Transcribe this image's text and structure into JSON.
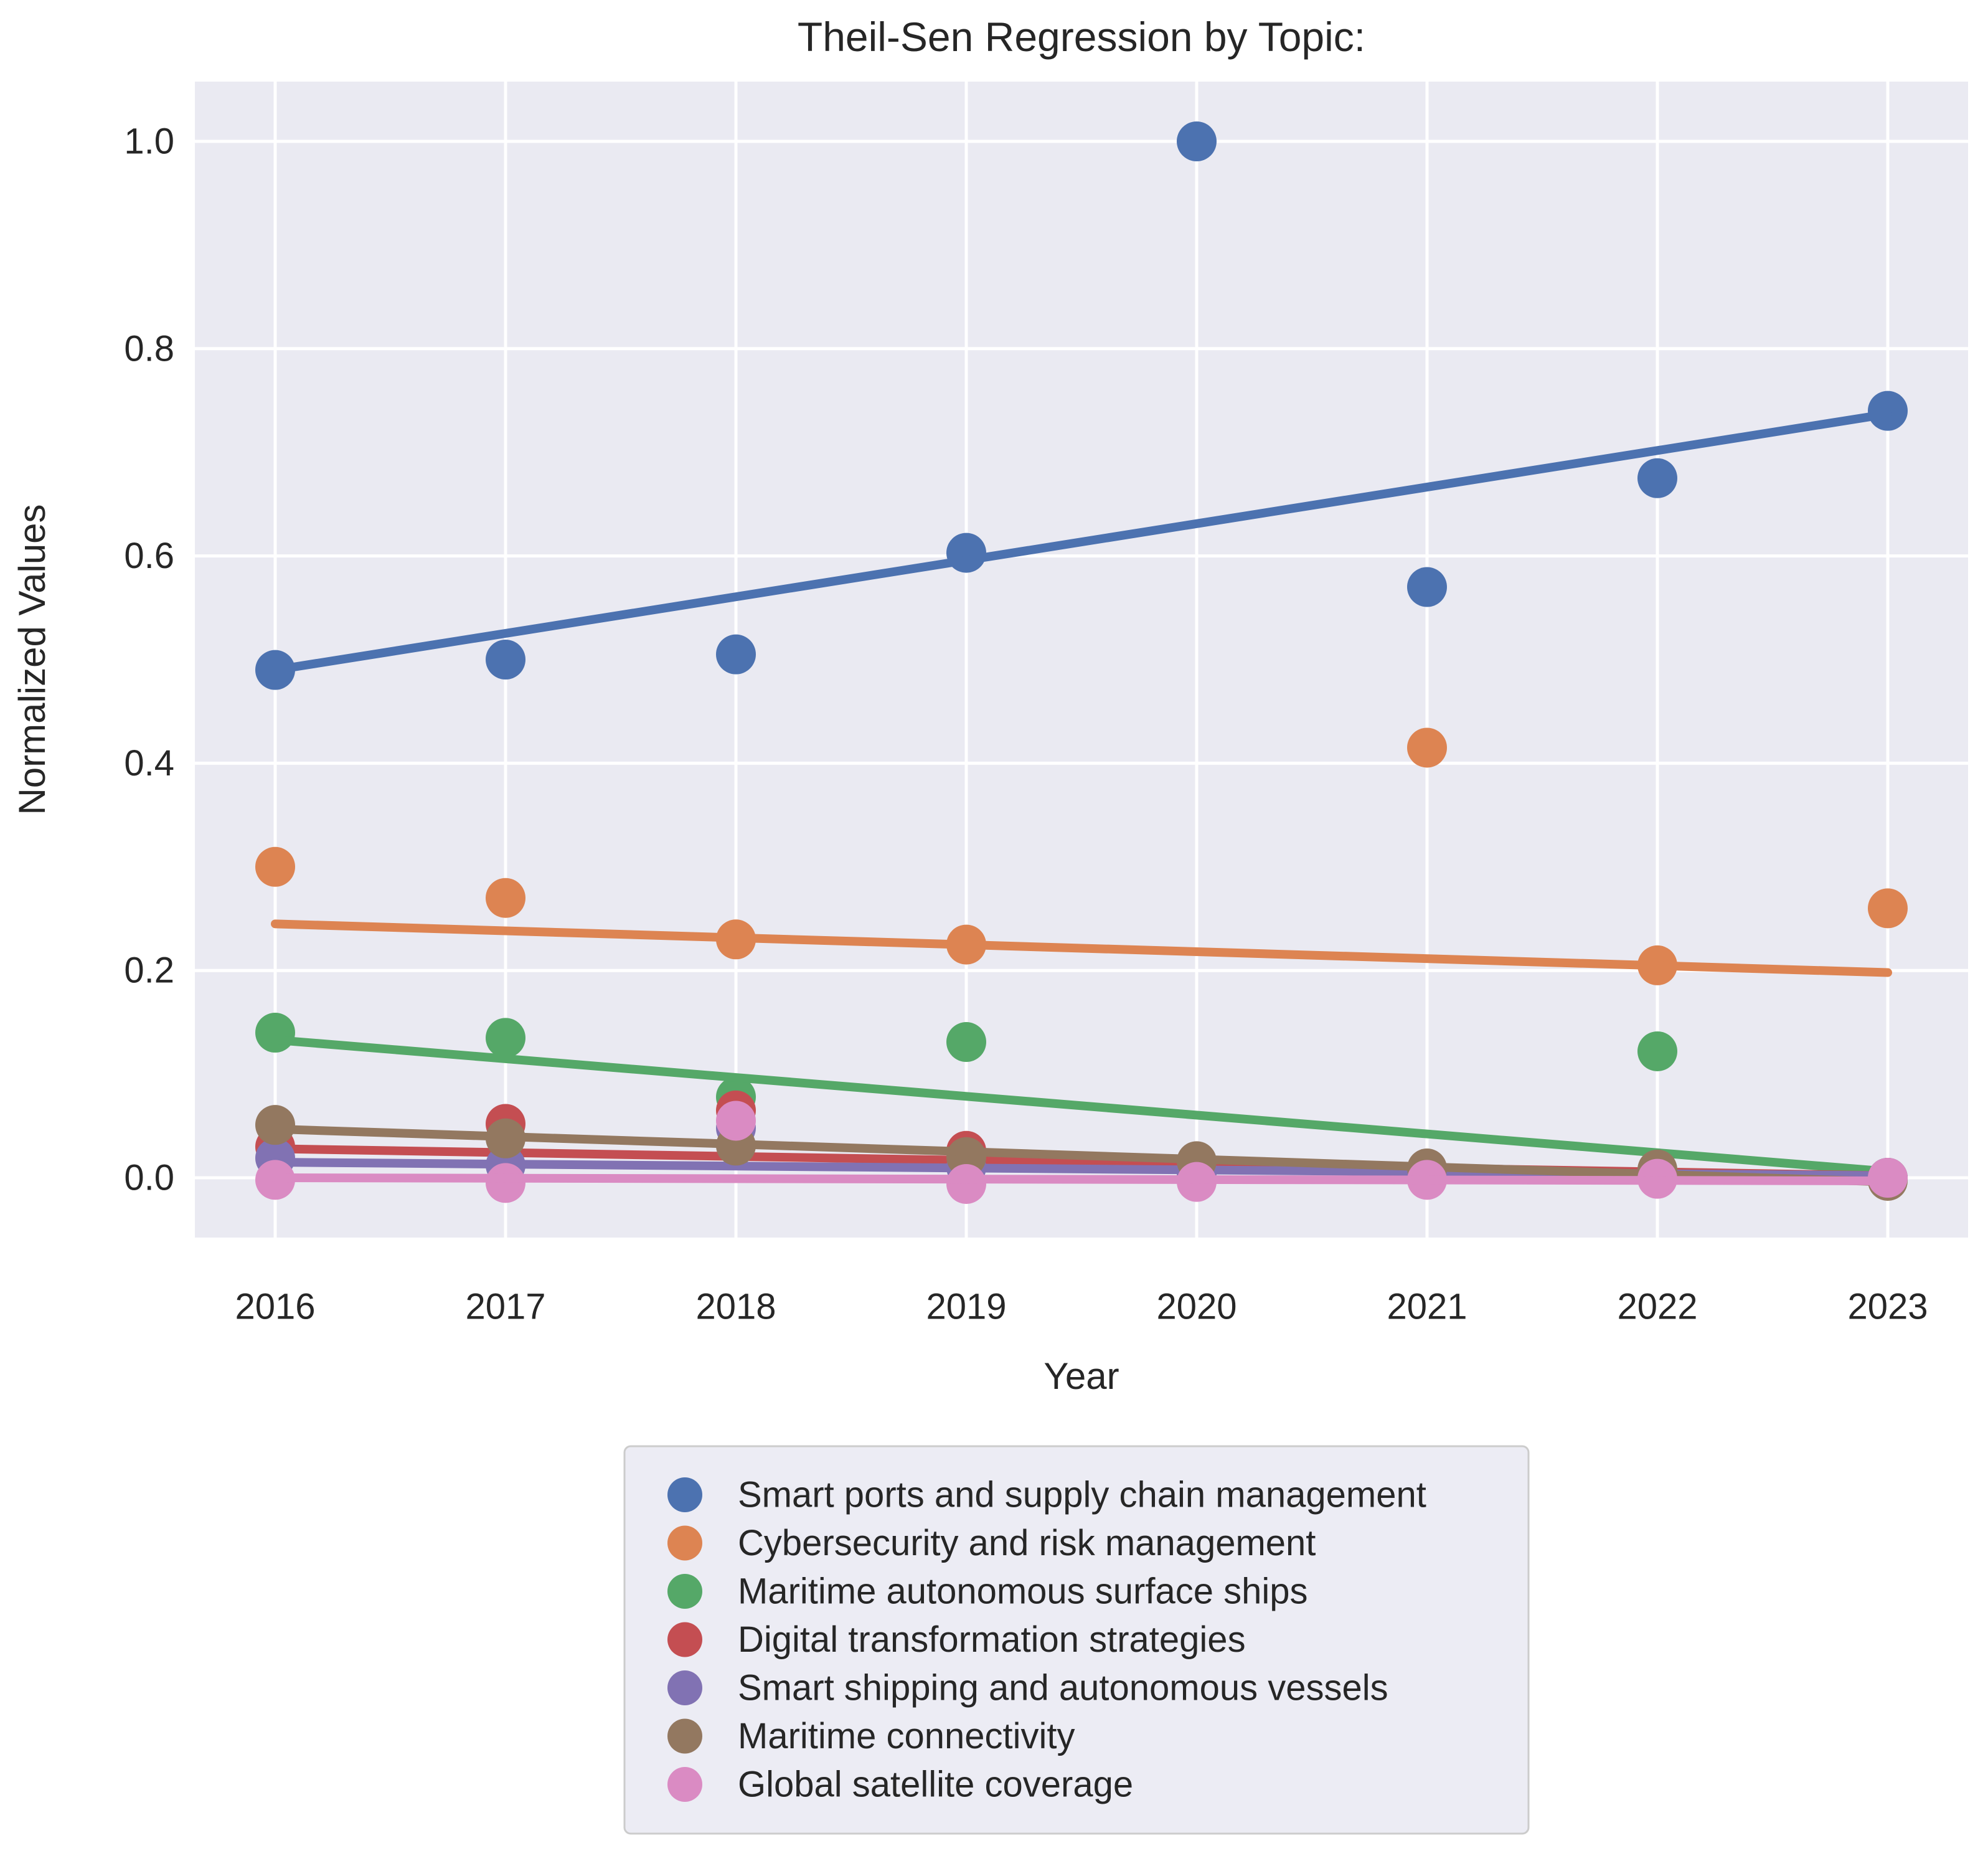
{
  "title": "Theil-Sen Regression by Topic:",
  "axes": {
    "xlabel": "Year",
    "ylabel": "Normalized Values",
    "x_tick_labels": [
      "2016",
      "2017",
      "2018",
      "2019",
      "2020",
      "2021",
      "2022",
      "2023"
    ],
    "y_tick_labels": [
      "0.0",
      "0.2",
      "0.4",
      "0.6",
      "0.8",
      "1.0"
    ],
    "y_tick_values": [
      0.0,
      0.2,
      0.4,
      0.6,
      0.8,
      1.0
    ]
  },
  "style_colors": {
    "plot_background": "#EAEAF2",
    "gridline": "#FFFFFF",
    "legend_background": "#ECECF4",
    "legend_border": "#CCCCCC",
    "text": "#262626"
  },
  "chart_data": {
    "type": "scatter",
    "title": "Theil-Sen Regression by Topic:",
    "xlabel": "Year",
    "ylabel": "Normalized Values",
    "x": [
      2016,
      2017,
      2018,
      2019,
      2020,
      2021,
      2022,
      2023
    ],
    "xlim": [
      2015.65,
      2023.35
    ],
    "ylim": [
      -0.058,
      1.058
    ],
    "grid": true,
    "legend_position": "below-plot",
    "marker": "circle",
    "regression": "theil-sen trend line per series",
    "series": [
      {
        "name": "Smart ports and supply chain management",
        "slug": "smart-ports-and-supply-chain-management",
        "color": "#4C72B0",
        "values": [
          0.49,
          0.5,
          0.505,
          0.603,
          1.0,
          0.57,
          0.675,
          0.74
        ],
        "trend": {
          "x_start": 2016,
          "y_start": 0.49,
          "x_end": 2023,
          "y_end": 0.737
        }
      },
      {
        "name": "Cybersecurity and risk management",
        "slug": "cybersecurity-and-risk-management",
        "color": "#DD8452",
        "values": [
          0.3,
          0.27,
          0.23,
          0.225,
          0.0,
          0.415,
          0.205,
          0.26
        ],
        "trend": {
          "x_start": 2016,
          "y_start": 0.245,
          "x_end": 2023,
          "y_end": 0.198
        }
      },
      {
        "name": "Maritime autonomous surface ships",
        "slug": "maritime-autonomous-surface-ships",
        "color": "#55A868",
        "values": [
          0.14,
          0.135,
          0.078,
          0.131,
          0.0,
          0.0,
          0.122,
          0.0
        ],
        "trend": {
          "x_start": 2016,
          "y_start": 0.133,
          "x_end": 2023,
          "y_end": 0.006
        }
      },
      {
        "name": "Digital transformation strategies",
        "slug": "digital-transformation-strategies",
        "color": "#C44E52",
        "values": [
          0.03,
          0.052,
          0.065,
          0.026,
          0.015,
          0.0,
          0.005,
          0.0
        ],
        "trend": {
          "x_start": 2016,
          "y_start": 0.028,
          "x_end": 2023,
          "y_end": 0.002
        }
      },
      {
        "name": "Smart shipping and autonomous vessels",
        "slug": "smart-shipping-and-autonomous-vessels",
        "color": "#8172B3",
        "values": [
          0.019,
          0.012,
          0.048,
          0.01,
          0.005,
          0.003,
          0.004,
          0.0
        ],
        "trend": {
          "x_start": 2016,
          "y_start": 0.015,
          "x_end": 2023,
          "y_end": 0.002
        }
      },
      {
        "name": "Maritime connectivity",
        "slug": "maritime-connectivity",
        "color": "#937860",
        "values": [
          0.051,
          0.038,
          0.031,
          0.02,
          0.016,
          0.009,
          0.008,
          -0.003
        ],
        "trend": {
          "x_start": 2016,
          "y_start": 0.047,
          "x_end": 2023,
          "y_end": -0.004
        }
      },
      {
        "name": "Global satellite coverage",
        "slug": "global-satellite-coverage",
        "color": "#DA8BC3",
        "values": [
          -0.002,
          -0.005,
          0.055,
          -0.006,
          -0.004,
          -0.002,
          -0.001,
          0.0
        ],
        "trend": {
          "x_start": 2016,
          "y_start": 0.0,
          "x_end": 2023,
          "y_end": -0.003
        }
      }
    ]
  }
}
